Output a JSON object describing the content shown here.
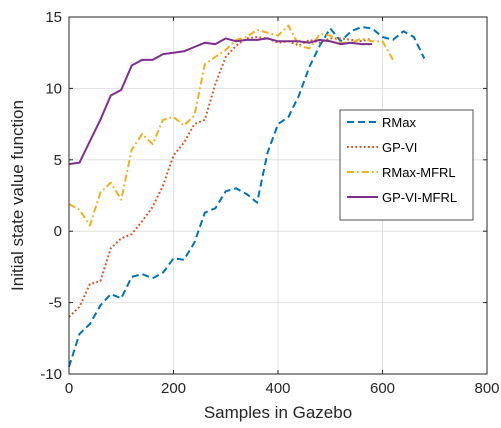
{
  "chart_data": {
    "type": "line",
    "xlabel": "Samples in Gazebo",
    "ylabel": "Initial state value function",
    "xlim": [
      0,
      800
    ],
    "ylim": [
      -10,
      15
    ],
    "xticks": [
      0,
      200,
      400,
      600,
      800
    ],
    "yticks": [
      -10,
      -5,
      0,
      5,
      10,
      15
    ],
    "grid": true,
    "legend_position": "right",
    "series": [
      {
        "name": "RMax",
        "color": "#0072BD",
        "style": "dashed",
        "x": [
          0,
          20,
          40,
          60,
          80,
          100,
          120,
          140,
          160,
          180,
          200,
          220,
          240,
          260,
          280,
          300,
          320,
          340,
          360,
          380,
          400,
          420,
          440,
          460,
          480,
          500,
          520,
          540,
          560,
          580,
          600,
          620,
          640,
          660,
          680
        ],
        "y": [
          -9.5,
          -7.2,
          -6.5,
          -5.2,
          -4.4,
          -4.7,
          -3.2,
          -3.0,
          -3.3,
          -2.9,
          -1.9,
          -2.0,
          -0.8,
          1.3,
          1.6,
          2.8,
          3.0,
          2.6,
          2.0,
          5.5,
          7.5,
          8.0,
          9.5,
          11.5,
          13.0,
          14.2,
          13.3,
          14.0,
          14.3,
          14.2,
          13.6,
          13.4,
          14.0,
          13.6,
          12.1
        ]
      },
      {
        "name": "GP-VI",
        "color": "#D95319",
        "style": "dotted",
        "x": [
          0,
          20,
          40,
          60,
          80,
          100,
          120,
          140,
          160,
          180,
          200,
          220,
          240,
          260,
          280,
          300,
          320,
          340,
          360,
          380,
          400,
          420,
          440,
          460,
          480,
          500,
          520,
          540,
          560,
          580
        ],
        "y": [
          -6.0,
          -5.3,
          -3.7,
          -3.5,
          -1.2,
          -0.5,
          -0.2,
          0.7,
          1.7,
          3.2,
          5.3,
          6.2,
          7.5,
          7.8,
          10.3,
          12.2,
          13.0,
          13.5,
          13.6,
          13.5,
          13.2,
          13.3,
          13.0,
          13.4,
          13.2,
          13.5,
          13.5,
          13.4,
          13.3,
          13.5
        ]
      },
      {
        "name": "RMax-MFRL",
        "color": "#EDB120",
        "style": "dashdot",
        "x": [
          0,
          20,
          40,
          60,
          80,
          100,
          120,
          140,
          160,
          180,
          200,
          220,
          240,
          260,
          280,
          300,
          320,
          340,
          360,
          380,
          400,
          420,
          440,
          460,
          480,
          500,
          520,
          540,
          560,
          580,
          600,
          620
        ],
        "y": [
          1.9,
          1.5,
          0.4,
          2.7,
          3.4,
          2.2,
          5.7,
          6.8,
          6.1,
          7.8,
          8.0,
          7.4,
          8.1,
          11.7,
          12.2,
          12.7,
          13.4,
          13.6,
          14.1,
          13.9,
          13.7,
          14.4,
          13.0,
          12.8,
          13.8,
          13.7,
          13.2,
          13.2,
          13.5,
          13.3,
          13.3,
          12.0
        ]
      },
      {
        "name": "GP-VI-MFRL",
        "color": "#7E2F8E",
        "style": "solid",
        "x": [
          0,
          20,
          40,
          60,
          80,
          100,
          120,
          140,
          160,
          180,
          200,
          220,
          240,
          260,
          280,
          300,
          320,
          340,
          360,
          380,
          400,
          420,
          440,
          460,
          480,
          500,
          520,
          540,
          560,
          580
        ],
        "y": [
          4.7,
          4.8,
          6.3,
          7.8,
          9.5,
          9.9,
          11.6,
          12.0,
          12.0,
          12.4,
          12.5,
          12.6,
          12.9,
          13.2,
          13.1,
          13.5,
          13.3,
          13.4,
          13.4,
          13.5,
          13.3,
          13.3,
          13.3,
          13.2,
          13.4,
          13.3,
          13.1,
          13.2,
          13.1,
          13.1
        ]
      }
    ]
  }
}
